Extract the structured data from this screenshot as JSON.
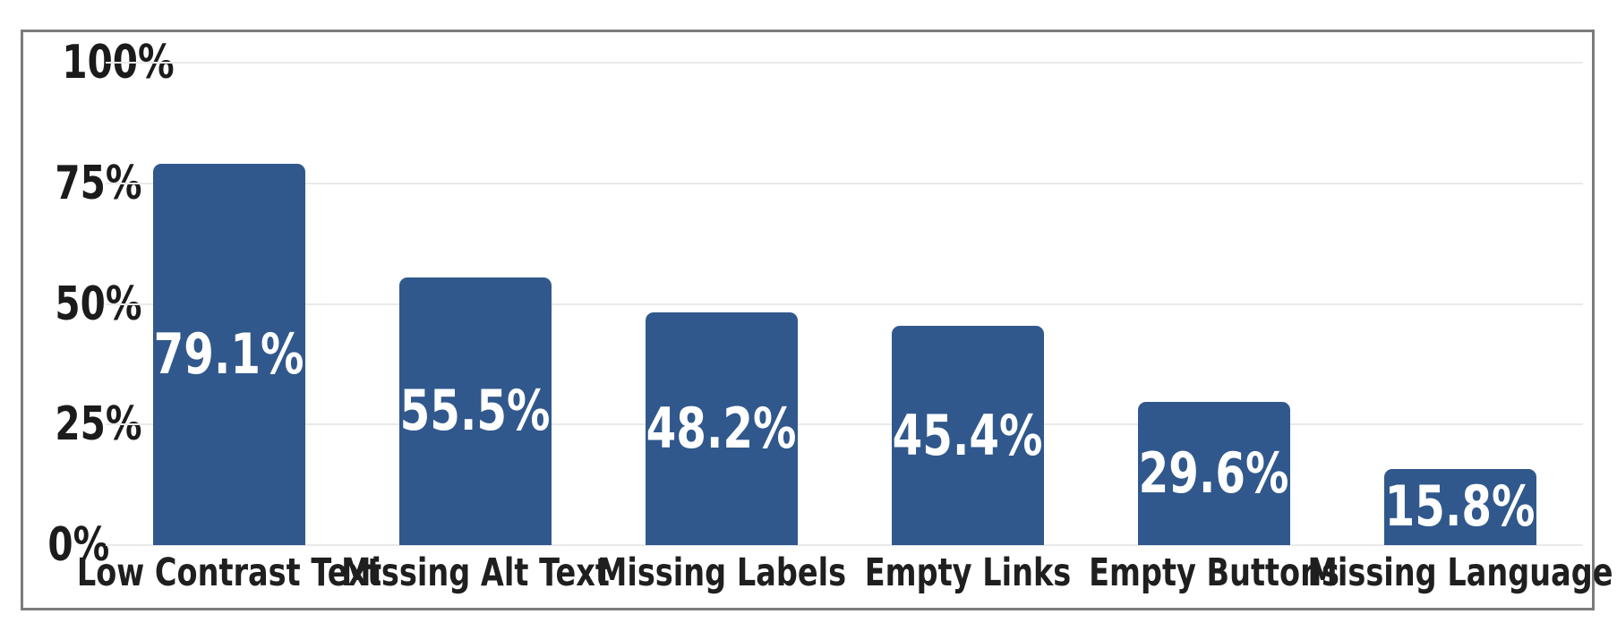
{
  "chart_data": {
    "type": "bar",
    "title": "",
    "xlabel": "",
    "ylabel": "",
    "categories": [
      "Low Contrast Text",
      "Missing Alt Text",
      "Missing Labels",
      "Empty Links",
      "Empty Buttons",
      "Missing Language"
    ],
    "values": [
      79.1,
      55.5,
      48.2,
      45.4,
      29.6,
      15.8
    ],
    "value_labels": [
      "79.1%",
      "55.5%",
      "48.2%",
      "45.4%",
      "29.6%",
      "15.8%"
    ],
    "y_ticks": [
      {
        "label": "0%",
        "value": 0
      },
      {
        "label": "25%",
        "value": 25
      },
      {
        "label": "50%",
        "value": 50
      },
      {
        "label": "75%",
        "value": 75
      },
      {
        "label": "100%",
        "value": 100
      }
    ],
    "ylim": [
      0,
      100
    ],
    "grid": true,
    "legend": false,
    "colors": {
      "bar_fill": "#30588c",
      "bar_value_text": "#ffffff",
      "axis_text": "#1b1b1b",
      "category_text": "#1f1f1f",
      "gridline": "#e9e9e9",
      "frame_border": "#7b7b7b",
      "background": "#ffffff"
    }
  }
}
